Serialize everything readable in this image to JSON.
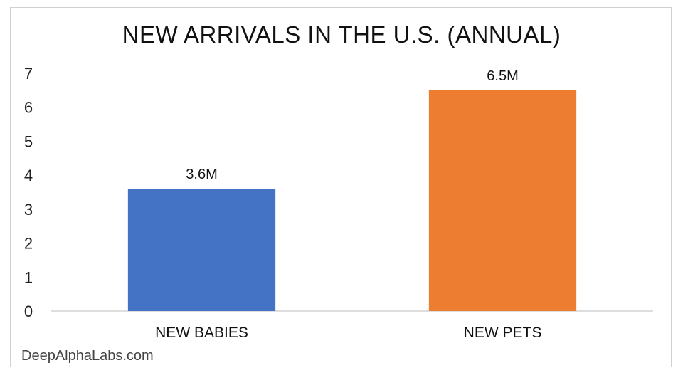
{
  "chart_data": {
    "type": "bar",
    "title": "NEW ARRIVALS IN THE U.S. (ANNUAL)",
    "categories": [
      "NEW BABIES",
      "NEW PETS"
    ],
    "values": [
      3.6,
      6.5
    ],
    "data_labels": [
      "3.6M",
      "6.5M"
    ],
    "colors": [
      "#4472c4",
      "#ed7d31"
    ],
    "ylim": [
      0,
      7
    ],
    "yticks": [
      0,
      1,
      2,
      3,
      4,
      5,
      6,
      7
    ],
    "xlabel": "",
    "ylabel": "",
    "grid": false,
    "legend": "none"
  },
  "footer": {
    "source": "DeepAlphaLabs.com"
  }
}
